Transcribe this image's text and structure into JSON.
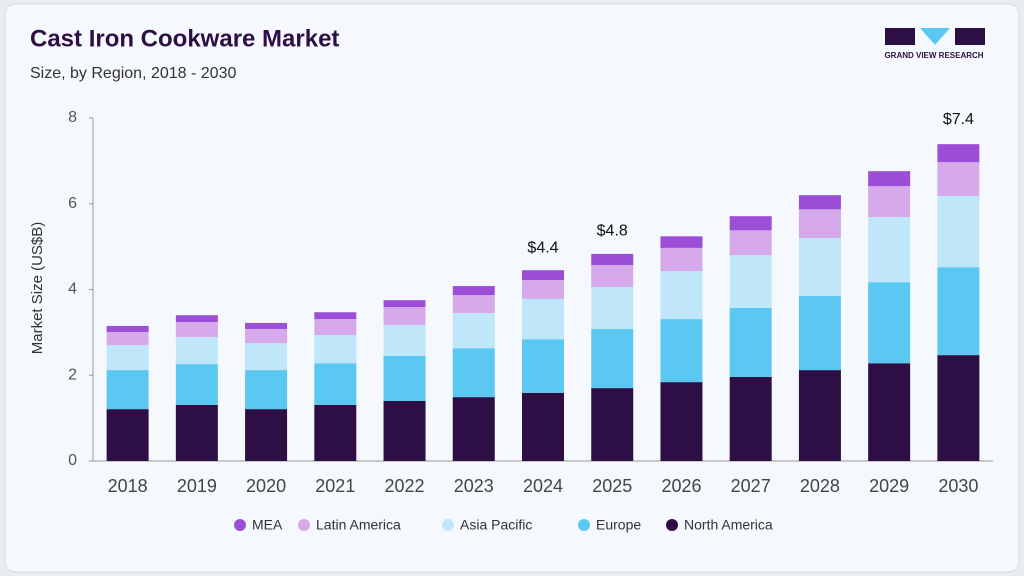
{
  "chart_data": {
    "type": "stacked-bar",
    "title": "Cast Iron Cookware Market",
    "subtitle": "Size, by Region, 2018 - 2030",
    "y_label": "Market Size (US$B)",
    "logo_text": "GRAND VIEW RESEARCH",
    "categories": [
      "2018",
      "2019",
      "2020",
      "2021",
      "2022",
      "2023",
      "2024",
      "2025",
      "2026",
      "2027",
      "2028",
      "2029",
      "2030"
    ],
    "series": [
      {
        "name": "MEA",
        "color": "#9c4ed6",
        "values": [
          0.14,
          0.16,
          0.14,
          0.16,
          0.16,
          0.21,
          0.23,
          0.26,
          0.27,
          0.33,
          0.33,
          0.35,
          0.42
        ]
      },
      {
        "name": "Latin America",
        "color": "#d5a9ea",
        "values": [
          0.31,
          0.35,
          0.33,
          0.37,
          0.42,
          0.42,
          0.44,
          0.51,
          0.54,
          0.58,
          0.67,
          0.72,
          0.79
        ]
      },
      {
        "name": "Asia Pacific",
        "color": "#bfe7f9",
        "values": [
          0.58,
          0.63,
          0.63,
          0.66,
          0.72,
          0.82,
          0.94,
          0.98,
          1.12,
          1.23,
          1.35,
          1.52,
          1.66
        ]
      },
      {
        "name": "Europe",
        "color": "#5bc8f1",
        "values": [
          0.91,
          0.95,
          0.91,
          0.97,
          1.05,
          1.14,
          1.25,
          1.38,
          1.47,
          1.61,
          1.73,
          1.89,
          2.05
        ]
      },
      {
        "name": "North America",
        "color": "#2e0f45",
        "values": [
          1.21,
          1.31,
          1.21,
          1.31,
          1.4,
          1.49,
          1.59,
          1.7,
          1.84,
          1.96,
          2.12,
          2.28,
          2.47
        ]
      }
    ],
    "totals": [
      null,
      null,
      null,
      null,
      null,
      null,
      4.4,
      4.8,
      null,
      null,
      null,
      null,
      7.4
    ],
    "total_labels": [
      null,
      null,
      null,
      null,
      null,
      null,
      "$4.4",
      "$4.8",
      null,
      null,
      null,
      null,
      "$7.4"
    ],
    "ylim": [
      0,
      8
    ],
    "yticks": [
      0,
      2,
      4,
      6,
      8
    ],
    "grid": false
  }
}
